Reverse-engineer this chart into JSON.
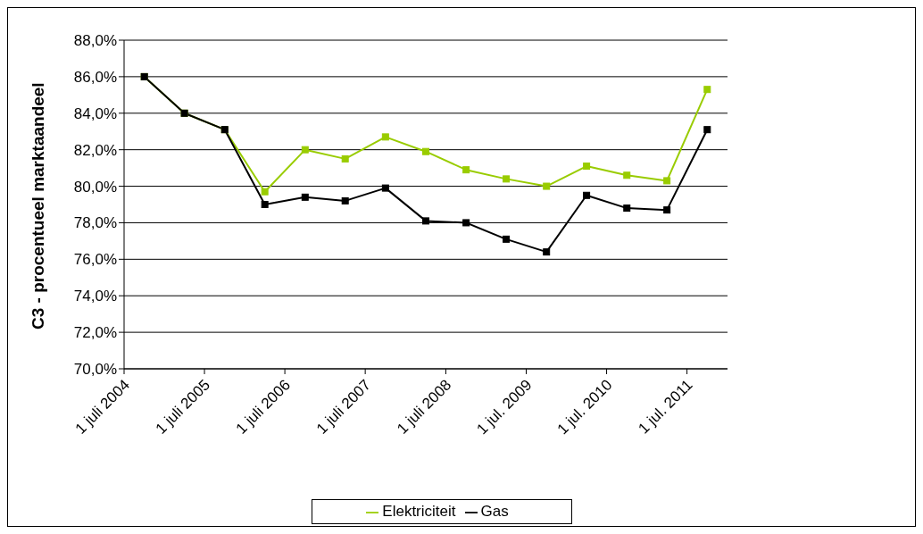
{
  "chart_data": {
    "type": "line",
    "ylabel": "C3 - procentueel marktaandeel",
    "x": [
      "2004-10-01",
      "2005-04-01",
      "2005-10-01",
      "2006-04-01",
      "2006-10-01",
      "2007-04-01",
      "2007-10-01",
      "2008-04-01",
      "2008-10-01",
      "2009-04-01",
      "2009-10-01",
      "2010-04-01",
      "2010-10-01",
      "2011-04-01",
      "2011-10-01"
    ],
    "series": [
      {
        "name": "Elektriciteit",
        "color": "#99cc00",
        "values": [
          86.0,
          84.0,
          83.1,
          79.7,
          82.0,
          81.5,
          82.7,
          81.9,
          80.9,
          80.4,
          80.0,
          81.1,
          80.6,
          80.3,
          85.3
        ]
      },
      {
        "name": "Gas",
        "color": "#000000",
        "values": [
          86.0,
          84.0,
          83.1,
          79.0,
          79.4,
          79.2,
          79.9,
          78.1,
          78.0,
          77.1,
          76.4,
          79.5,
          78.8,
          78.7,
          83.1
        ]
      }
    ],
    "xlim": [
      "2004-07-01",
      "2012-01-01"
    ],
    "xticks": [
      {
        "value": "2004-07-01",
        "label": "1 juli 2004"
      },
      {
        "value": "2005-07-01",
        "label": "1 juli 2005"
      },
      {
        "value": "2006-07-01",
        "label": "1 juli 2006"
      },
      {
        "value": "2007-07-01",
        "label": "1 juli 2007"
      },
      {
        "value": "2008-07-01",
        "label": "1 juli 2008"
      },
      {
        "value": "2009-07-01",
        "label": "1 jul. 2009"
      },
      {
        "value": "2010-07-01",
        "label": "1 jul. 2010"
      },
      {
        "value": "2011-07-01",
        "label": "1 jul. 2011"
      }
    ],
    "ylim": [
      70,
      88
    ],
    "yticks": [
      {
        "value": 70,
        "label": "70,0%"
      },
      {
        "value": 72,
        "label": "72,0%"
      },
      {
        "value": 74,
        "label": "74,0%"
      },
      {
        "value": 76,
        "label": "76,0%"
      },
      {
        "value": 78,
        "label": "78,0%"
      },
      {
        "value": 80,
        "label": "80,0%"
      },
      {
        "value": 82,
        "label": "82,0%"
      },
      {
        "value": 84,
        "label": "84,0%"
      },
      {
        "value": 86,
        "label": "86,0%"
      },
      {
        "value": 88,
        "label": "88,0%"
      }
    ],
    "grid": "y",
    "legend": "bottom",
    "marker": "square",
    "line_style": "solid"
  }
}
